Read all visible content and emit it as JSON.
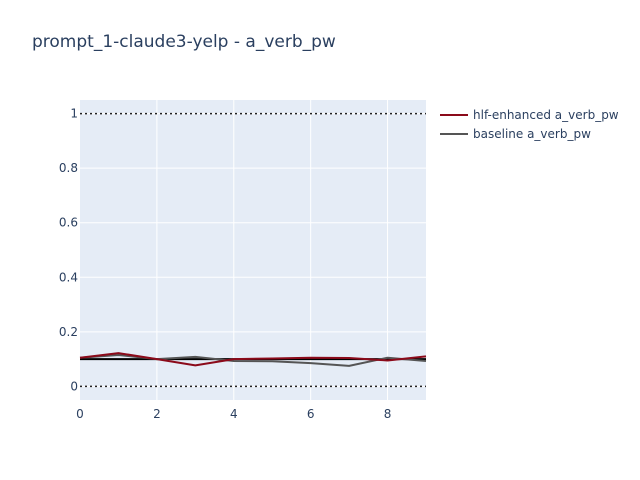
{
  "chart_data": {
    "type": "line",
    "title": "prompt_1-claude3-yelp - a_verb_pw",
    "xlabel": "",
    "ylabel": "",
    "xlim": [
      0,
      9
    ],
    "ylim": [
      -0.05,
      1.05
    ],
    "x_ticks": [
      0,
      2,
      4,
      6,
      8
    ],
    "y_ticks": [
      0,
      0.2,
      0.4,
      0.6,
      0.8,
      1
    ],
    "y_tick_labels": [
      "0",
      "0.2",
      "0.4",
      "0.6",
      "0.8",
      "1"
    ],
    "grid": true,
    "legend_position": "top-right outside",
    "x": [
      0,
      1,
      2,
      3,
      4,
      5,
      6,
      7,
      8,
      9
    ],
    "series": [
      {
        "name": "hlf-enhanced a_verb_pw",
        "color": "#8b0a1a",
        "values": [
          0.105,
          0.122,
          0.1,
          0.077,
          0.1,
          0.102,
          0.105,
          0.104,
          0.095,
          0.11
        ]
      },
      {
        "name": "baseline a_verb_pw",
        "color": "#555555",
        "values": [
          0.105,
          0.115,
          0.1,
          0.108,
          0.093,
          0.092,
          0.085,
          0.075,
          0.105,
          0.093
        ]
      }
    ],
    "reference_lines": [
      {
        "y": 1,
        "style": "dotted",
        "color": "#222222"
      },
      {
        "y": 0,
        "style": "dotted",
        "color": "#222222"
      },
      {
        "y": 0.1,
        "style": "solid",
        "color": "#000000"
      }
    ]
  }
}
